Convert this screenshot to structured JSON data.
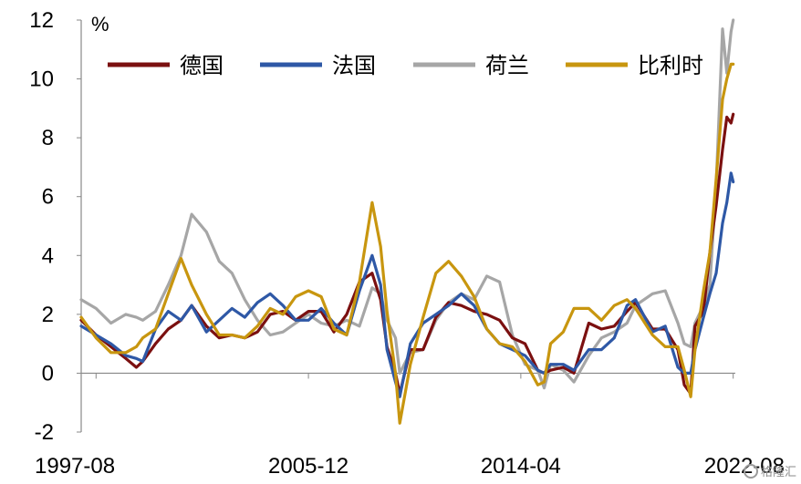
{
  "chart_data": {
    "type": "line",
    "title": "",
    "xlabel": "",
    "ylabel": "%",
    "ylim": [
      -2,
      12
    ],
    "yticks": [
      -2,
      0,
      2,
      4,
      6,
      8,
      10,
      12
    ],
    "xlim": [
      "1997-01",
      "2022-09"
    ],
    "xtick_labels": [
      "1997-08",
      "2005-12",
      "2014-04",
      "2022-08"
    ],
    "grid": false,
    "legend_position": "top",
    "series": [
      {
        "name": "德国",
        "color": "#7B1010",
        "points": [
          [
            "1997-01",
            1.8
          ],
          [
            "1997-08",
            1.3
          ],
          [
            "1998-03",
            0.9
          ],
          [
            "1998-10",
            0.5
          ],
          [
            "1999-03",
            0.2
          ],
          [
            "1999-06",
            0.4
          ],
          [
            "1999-12",
            1.0
          ],
          [
            "2000-06",
            1.5
          ],
          [
            "2000-12",
            1.8
          ],
          [
            "2001-05",
            2.3
          ],
          [
            "2001-12",
            1.6
          ],
          [
            "2002-06",
            1.2
          ],
          [
            "2002-12",
            1.3
          ],
          [
            "2003-06",
            1.2
          ],
          [
            "2003-12",
            1.4
          ],
          [
            "2004-06",
            2.0
          ],
          [
            "2004-12",
            2.1
          ],
          [
            "2005-06",
            1.8
          ],
          [
            "2005-12",
            2.1
          ],
          [
            "2006-06",
            2.1
          ],
          [
            "2006-12",
            1.4
          ],
          [
            "2007-06",
            2.0
          ],
          [
            "2007-12",
            3.1
          ],
          [
            "2008-06",
            3.4
          ],
          [
            "2008-10",
            2.5
          ],
          [
            "2009-01",
            0.9
          ],
          [
            "2009-05",
            0.0
          ],
          [
            "2009-07",
            -0.7
          ],
          [
            "2009-12",
            0.8
          ],
          [
            "2010-06",
            0.8
          ],
          [
            "2010-12",
            1.9
          ],
          [
            "2011-06",
            2.4
          ],
          [
            "2011-12",
            2.3
          ],
          [
            "2012-06",
            2.1
          ],
          [
            "2012-12",
            2.0
          ],
          [
            "2013-06",
            1.8
          ],
          [
            "2013-12",
            1.2
          ],
          [
            "2014-06",
            1.0
          ],
          [
            "2014-12",
            0.1
          ],
          [
            "2015-03",
            0.0
          ],
          [
            "2015-06",
            0.1
          ],
          [
            "2015-12",
            0.2
          ],
          [
            "2016-05",
            0.0
          ],
          [
            "2016-12",
            1.7
          ],
          [
            "2017-06",
            1.5
          ],
          [
            "2017-12",
            1.6
          ],
          [
            "2018-06",
            2.1
          ],
          [
            "2018-10",
            2.4
          ],
          [
            "2019-06",
            1.5
          ],
          [
            "2019-12",
            1.5
          ],
          [
            "2020-06",
            0.8
          ],
          [
            "2020-09",
            -0.4
          ],
          [
            "2020-12",
            -0.7
          ],
          [
            "2021-02",
            1.6
          ],
          [
            "2021-06",
            2.1
          ],
          [
            "2021-09",
            4.1
          ],
          [
            "2021-12",
            5.7
          ],
          [
            "2022-03",
            7.6
          ],
          [
            "2022-05",
            8.7
          ],
          [
            "2022-07",
            8.5
          ],
          [
            "2022-08",
            8.8
          ]
        ]
      },
      {
        "name": "法国",
        "color": "#2E58A6",
        "points": [
          [
            "1997-01",
            1.6
          ],
          [
            "1997-08",
            1.3
          ],
          [
            "1998-03",
            1.0
          ],
          [
            "1998-10",
            0.6
          ],
          [
            "1999-03",
            0.5
          ],
          [
            "1999-06",
            0.4
          ],
          [
            "1999-12",
            1.5
          ],
          [
            "2000-06",
            2.1
          ],
          [
            "2000-12",
            1.8
          ],
          [
            "2001-05",
            2.3
          ],
          [
            "2001-12",
            1.4
          ],
          [
            "2002-06",
            1.8
          ],
          [
            "2002-12",
            2.2
          ],
          [
            "2003-06",
            1.9
          ],
          [
            "2003-12",
            2.4
          ],
          [
            "2004-06",
            2.7
          ],
          [
            "2004-12",
            2.3
          ],
          [
            "2005-06",
            1.8
          ],
          [
            "2005-12",
            1.8
          ],
          [
            "2006-06",
            2.2
          ],
          [
            "2006-12",
            1.7
          ],
          [
            "2007-06",
            1.3
          ],
          [
            "2007-12",
            2.8
          ],
          [
            "2008-06",
            4.0
          ],
          [
            "2008-10",
            3.0
          ],
          [
            "2009-01",
            0.8
          ],
          [
            "2009-05",
            -0.3
          ],
          [
            "2009-07",
            -0.8
          ],
          [
            "2009-12",
            1.0
          ],
          [
            "2010-06",
            1.7
          ],
          [
            "2010-12",
            2.0
          ],
          [
            "2011-06",
            2.3
          ],
          [
            "2011-12",
            2.7
          ],
          [
            "2012-06",
            2.3
          ],
          [
            "2012-12",
            1.5
          ],
          [
            "2013-06",
            1.0
          ],
          [
            "2013-12",
            0.8
          ],
          [
            "2014-06",
            0.6
          ],
          [
            "2014-12",
            0.1
          ],
          [
            "2015-03",
            0.0
          ],
          [
            "2015-06",
            0.3
          ],
          [
            "2015-12",
            0.3
          ],
          [
            "2016-05",
            0.1
          ],
          [
            "2016-12",
            0.8
          ],
          [
            "2017-06",
            0.8
          ],
          [
            "2017-12",
            1.2
          ],
          [
            "2018-06",
            2.3
          ],
          [
            "2018-10",
            2.5
          ],
          [
            "2019-06",
            1.4
          ],
          [
            "2019-12",
            1.6
          ],
          [
            "2020-06",
            0.2
          ],
          [
            "2020-09",
            0.0
          ],
          [
            "2020-12",
            0.0
          ],
          [
            "2021-02",
            0.8
          ],
          [
            "2021-06",
            1.9
          ],
          [
            "2021-09",
            2.7
          ],
          [
            "2021-12",
            3.4
          ],
          [
            "2022-03",
            5.1
          ],
          [
            "2022-05",
            5.8
          ],
          [
            "2022-07",
            6.8
          ],
          [
            "2022-08",
            6.5
          ]
        ]
      },
      {
        "name": "荷兰",
        "color": "#A6A6A6",
        "points": [
          [
            "1997-01",
            2.5
          ],
          [
            "1997-08",
            2.2
          ],
          [
            "1998-03",
            1.7
          ],
          [
            "1998-10",
            2.0
          ],
          [
            "1999-03",
            1.9
          ],
          [
            "1999-06",
            1.8
          ],
          [
            "1999-12",
            2.1
          ],
          [
            "2000-06",
            3.0
          ],
          [
            "2000-12",
            4.0
          ],
          [
            "2001-05",
            5.4
          ],
          [
            "2001-12",
            4.8
          ],
          [
            "2002-06",
            3.8
          ],
          [
            "2002-12",
            3.4
          ],
          [
            "2003-06",
            2.5
          ],
          [
            "2003-12",
            1.8
          ],
          [
            "2004-06",
            1.3
          ],
          [
            "2004-12",
            1.4
          ],
          [
            "2005-06",
            1.7
          ],
          [
            "2005-12",
            2.0
          ],
          [
            "2006-06",
            1.7
          ],
          [
            "2006-12",
            1.6
          ],
          [
            "2007-06",
            1.8
          ],
          [
            "2007-12",
            1.6
          ],
          [
            "2008-06",
            2.9
          ],
          [
            "2008-10",
            2.7
          ],
          [
            "2009-01",
            1.8
          ],
          [
            "2009-05",
            1.2
          ],
          [
            "2009-07",
            0.0
          ],
          [
            "2009-12",
            0.7
          ],
          [
            "2010-06",
            0.8
          ],
          [
            "2010-12",
            1.8
          ],
          [
            "2011-06",
            2.4
          ],
          [
            "2011-12",
            2.7
          ],
          [
            "2012-06",
            2.5
          ],
          [
            "2012-12",
            3.3
          ],
          [
            "2013-06",
            3.1
          ],
          [
            "2013-12",
            1.3
          ],
          [
            "2014-06",
            0.3
          ],
          [
            "2014-12",
            0.1
          ],
          [
            "2015-03",
            -0.5
          ],
          [
            "2015-06",
            0.3
          ],
          [
            "2015-12",
            0.1
          ],
          [
            "2016-05",
            -0.3
          ],
          [
            "2016-12",
            0.6
          ],
          [
            "2017-06",
            1.2
          ],
          [
            "2017-12",
            1.4
          ],
          [
            "2018-06",
            1.7
          ],
          [
            "2018-10",
            2.3
          ],
          [
            "2019-06",
            2.7
          ],
          [
            "2019-12",
            2.8
          ],
          [
            "2020-06",
            1.7
          ],
          [
            "2020-09",
            1.0
          ],
          [
            "2020-12",
            0.9
          ],
          [
            "2021-02",
            1.7
          ],
          [
            "2021-06",
            2.3
          ],
          [
            "2021-09",
            3.0
          ],
          [
            "2021-12",
            6.4
          ],
          [
            "2022-03",
            11.7
          ],
          [
            "2022-05",
            10.2
          ],
          [
            "2022-07",
            11.6
          ],
          [
            "2022-08",
            12.0
          ]
        ]
      },
      {
        "name": "比利时",
        "color": "#C8960F",
        "points": [
          [
            "1997-01",
            1.9
          ],
          [
            "1997-08",
            1.2
          ],
          [
            "1998-03",
            0.7
          ],
          [
            "1998-10",
            0.7
          ],
          [
            "1999-03",
            0.9
          ],
          [
            "1999-06",
            1.2
          ],
          [
            "1999-12",
            1.5
          ],
          [
            "2000-06",
            2.7
          ],
          [
            "2000-12",
            3.9
          ],
          [
            "2001-05",
            3.0
          ],
          [
            "2001-12",
            2.0
          ],
          [
            "2002-06",
            1.3
          ],
          [
            "2002-12",
            1.3
          ],
          [
            "2003-06",
            1.2
          ],
          [
            "2003-12",
            1.6
          ],
          [
            "2004-06",
            2.2
          ],
          [
            "2004-12",
            2.0
          ],
          [
            "2005-06",
            2.6
          ],
          [
            "2005-12",
            2.8
          ],
          [
            "2006-06",
            2.6
          ],
          [
            "2006-12",
            1.5
          ],
          [
            "2007-06",
            1.3
          ],
          [
            "2007-12",
            3.1
          ],
          [
            "2008-06",
            5.8
          ],
          [
            "2008-10",
            4.3
          ],
          [
            "2009-01",
            2.1
          ],
          [
            "2009-05",
            0.0
          ],
          [
            "2009-07",
            -1.7
          ],
          [
            "2009-12",
            0.3
          ],
          [
            "2010-06",
            1.9
          ],
          [
            "2010-12",
            3.4
          ],
          [
            "2011-06",
            3.8
          ],
          [
            "2011-12",
            3.3
          ],
          [
            "2012-06",
            2.6
          ],
          [
            "2012-12",
            1.5
          ],
          [
            "2013-06",
            1.0
          ],
          [
            "2013-12",
            0.9
          ],
          [
            "2014-06",
            0.4
          ],
          [
            "2014-12",
            -0.4
          ],
          [
            "2015-03",
            -0.3
          ],
          [
            "2015-06",
            1.0
          ],
          [
            "2015-12",
            1.4
          ],
          [
            "2016-05",
            2.2
          ],
          [
            "2016-12",
            2.2
          ],
          [
            "2017-06",
            1.8
          ],
          [
            "2017-12",
            2.3
          ],
          [
            "2018-06",
            2.5
          ],
          [
            "2018-10",
            2.2
          ],
          [
            "2019-06",
            1.3
          ],
          [
            "2019-12",
            0.9
          ],
          [
            "2020-06",
            0.9
          ],
          [
            "2020-09",
            0.1
          ],
          [
            "2020-12",
            -0.8
          ],
          [
            "2021-02",
            0.8
          ],
          [
            "2021-06",
            2.8
          ],
          [
            "2021-09",
            4.1
          ],
          [
            "2021-12",
            6.6
          ],
          [
            "2022-03",
            9.3
          ],
          [
            "2022-05",
            10.0
          ],
          [
            "2022-07",
            10.5
          ],
          [
            "2022-08",
            10.5
          ]
        ]
      }
    ]
  },
  "legend": [
    {
      "label": "德国",
      "color": "#7B1010"
    },
    {
      "label": "法国",
      "color": "#2E58A6"
    },
    {
      "label": "荷兰",
      "color": "#A6A6A6"
    },
    {
      "label": "比利时",
      "color": "#C8960F"
    }
  ],
  "watermark": {
    "text": "格隆汇",
    "icon": "gelonghui-logo-icon"
  }
}
